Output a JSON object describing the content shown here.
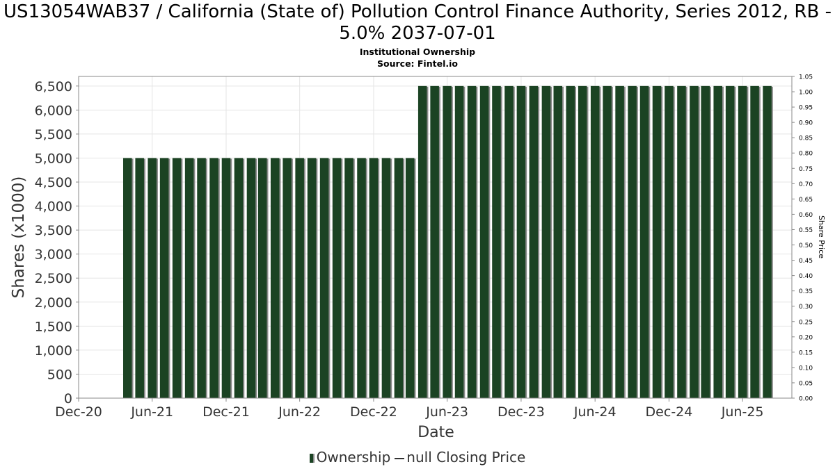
{
  "chart_data": {
    "type": "bar",
    "title": "US13054WAB37 / California (State of) Pollution Control Finance Authority, Series 2012, RB - 5.0% 2037-07-01",
    "subtitle": "Institutional Ownership",
    "source": "Source: Fintel.io",
    "xlabel": "Date",
    "ylabel": "Shares (x1000)",
    "y2label": "Share Price",
    "ylim": [
      0,
      6700
    ],
    "y2lim": [
      0,
      1.05
    ],
    "x_range": [
      "2020-12-01",
      "2025-10-01"
    ],
    "yticks": [
      {
        "value": 0,
        "label": "0"
      },
      {
        "value": 500,
        "label": "500"
      },
      {
        "value": 1000,
        "label": "1,000"
      },
      {
        "value": 1500,
        "label": "1,500"
      },
      {
        "value": 2000,
        "label": "2,000"
      },
      {
        "value": 2500,
        "label": "2,500"
      },
      {
        "value": 3000,
        "label": "3,000"
      },
      {
        "value": 3500,
        "label": "3,500"
      },
      {
        "value": 4000,
        "label": "4,000"
      },
      {
        "value": 4500,
        "label": "4,500"
      },
      {
        "value": 5000,
        "label": "5,000"
      },
      {
        "value": 5500,
        "label": "5,500"
      },
      {
        "value": 6000,
        "label": "6,000"
      },
      {
        "value": 6500,
        "label": "6,500"
      }
    ],
    "y2ticks": [
      {
        "value": 0.0,
        "label": "0.00"
      },
      {
        "value": 0.05,
        "label": "0.05"
      },
      {
        "value": 0.1,
        "label": "0.10"
      },
      {
        "value": 0.15,
        "label": "0.15"
      },
      {
        "value": 0.2,
        "label": "0.20"
      },
      {
        "value": 0.25,
        "label": "0.25"
      },
      {
        "value": 0.3,
        "label": "0.30"
      },
      {
        "value": 0.35,
        "label": "0.35"
      },
      {
        "value": 0.4,
        "label": "0.40"
      },
      {
        "value": 0.45,
        "label": "0.45"
      },
      {
        "value": 0.5,
        "label": "0.50"
      },
      {
        "value": 0.55,
        "label": "0.55"
      },
      {
        "value": 0.6,
        "label": "0.60"
      },
      {
        "value": 0.65,
        "label": "0.65"
      },
      {
        "value": 0.7,
        "label": "0.70"
      },
      {
        "value": 0.75,
        "label": "0.75"
      },
      {
        "value": 0.8,
        "label": "0.80"
      },
      {
        "value": 0.85,
        "label": "0.85"
      },
      {
        "value": 0.9,
        "label": "0.90"
      },
      {
        "value": 0.95,
        "label": "0.95"
      },
      {
        "value": 1.0,
        "label": "1.00"
      },
      {
        "value": 1.05,
        "label": "1.05"
      }
    ],
    "xticks": [
      {
        "date": "2020-12-01",
        "label": "Dec-20"
      },
      {
        "date": "2021-06-01",
        "label": "Jun-21"
      },
      {
        "date": "2021-12-01",
        "label": "Dec-21"
      },
      {
        "date": "2022-06-01",
        "label": "Jun-22"
      },
      {
        "date": "2022-12-01",
        "label": "Dec-22"
      },
      {
        "date": "2023-06-01",
        "label": "Jun-23"
      },
      {
        "date": "2023-12-01",
        "label": "Dec-23"
      },
      {
        "date": "2024-06-01",
        "label": "Jun-24"
      },
      {
        "date": "2024-12-01",
        "label": "Dec-24"
      },
      {
        "date": "2025-06-01",
        "label": "Jun-25"
      }
    ],
    "grid": true,
    "legend_position": "bottom-center",
    "series": [
      {
        "name": "Ownership",
        "color": "#1b4323",
        "shadow_color": "#8a8a8a",
        "x": [
          "2021-04-01",
          "2021-05-01",
          "2021-06-01",
          "2021-07-01",
          "2021-08-01",
          "2021-09-01",
          "2021-10-01",
          "2021-11-01",
          "2021-12-01",
          "2022-01-01",
          "2022-02-01",
          "2022-03-01",
          "2022-04-01",
          "2022-05-01",
          "2022-06-01",
          "2022-07-01",
          "2022-08-01",
          "2022-09-01",
          "2022-10-01",
          "2022-11-01",
          "2022-12-01",
          "2023-01-01",
          "2023-02-01",
          "2023-03-01",
          "2023-04-01",
          "2023-05-01",
          "2023-06-01",
          "2023-07-01",
          "2023-08-01",
          "2023-09-01",
          "2023-10-01",
          "2023-11-01",
          "2023-12-01",
          "2024-01-01",
          "2024-02-01",
          "2024-03-01",
          "2024-04-01",
          "2024-05-01",
          "2024-06-01",
          "2024-07-01",
          "2024-08-01",
          "2024-09-01",
          "2024-10-01",
          "2024-11-01",
          "2024-12-01",
          "2025-01-01",
          "2025-02-01",
          "2025-03-01",
          "2025-04-01",
          "2025-05-01",
          "2025-06-01",
          "2025-07-01",
          "2025-08-01"
        ],
        "values": [
          5000,
          5000,
          5000,
          5000,
          5000,
          5000,
          5000,
          5000,
          5000,
          5000,
          5000,
          5000,
          5000,
          5000,
          5000,
          5000,
          5000,
          5000,
          5000,
          5000,
          5000,
          5000,
          5000,
          5000,
          6500,
          6500,
          6500,
          6500,
          6500,
          6500,
          6500,
          6500,
          6500,
          6500,
          6500,
          6500,
          6500,
          6500,
          6500,
          6500,
          6500,
          6500,
          6500,
          6500,
          6500,
          6500,
          6500,
          6500,
          6500,
          6500,
          6500,
          6500,
          6500
        ]
      },
      {
        "name": "null Closing Price",
        "color": "#333333",
        "x": [],
        "values": []
      }
    ]
  }
}
